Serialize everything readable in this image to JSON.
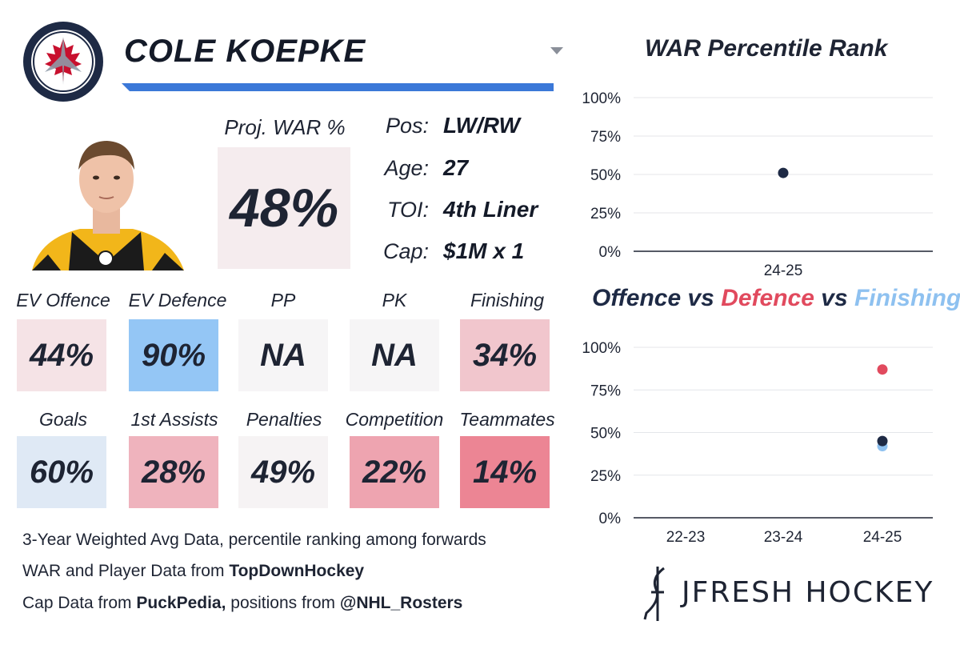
{
  "player": {
    "name": "COLE KOEPKE",
    "team_logo_icon": "winnipeg-jets-logo-icon",
    "proj_war_label": "Proj. WAR %",
    "proj_war_value": "48%"
  },
  "info": [
    {
      "label": "Pos:",
      "value": "LW/RW"
    },
    {
      "label": "Age:",
      "value": "27"
    },
    {
      "label": "TOI:",
      "value": "4th Liner"
    },
    {
      "label": "Cap:",
      "value": "$1M x 1"
    }
  ],
  "stats_row1": [
    {
      "label": "EV Offence",
      "value": "44%",
      "color": "#f5e3e6"
    },
    {
      "label": "EV Defence",
      "value": "90%",
      "color": "#94c6f5"
    },
    {
      "label": "PP",
      "value": "NA",
      "color": "#f6f5f6"
    },
    {
      "label": "PK",
      "value": "NA",
      "color": "#f6f5f6"
    },
    {
      "label": "Finishing",
      "value": "34%",
      "color": "#f1c6cd"
    }
  ],
  "stats_row2": [
    {
      "label": "Goals",
      "value": "60%",
      "color": "#dfe9f5"
    },
    {
      "label": "1st Assists",
      "value": "28%",
      "color": "#efb3bd"
    },
    {
      "label": "Penalties",
      "value": "49%",
      "color": "#f6f3f4"
    },
    {
      "label": "Competition",
      "value": "22%",
      "color": "#eea4b0"
    },
    {
      "label": "Teammates",
      "value": "14%",
      "color": "#ec8594"
    }
  ],
  "footer": {
    "line1": "3-Year Weighted Avg Data, percentile ranking among forwards",
    "line2_prefix": "WAR and Player Data from ",
    "line2_bold": "TopDownHockey",
    "line3_prefix": "Cap Data from ",
    "line3_bold1": "PuckPedia,",
    "line3_mid": " positions from ",
    "line3_bold2": "@NHL_Rosters"
  },
  "brand": {
    "name": "JFRESH HOCKEY",
    "logo_icon": "jfresh-stick-logo-icon"
  },
  "colors": {
    "navy": "#1e2a45",
    "defence_red": "#e14a5e",
    "finishing_blue": "#8ec1f0",
    "accent_blue": "#3b78d8"
  },
  "chart_data": [
    {
      "type": "scatter",
      "title": "WAR Percentile Rank",
      "categories": [
        "24-25"
      ],
      "yticks": [
        "100%",
        "75%",
        "50%",
        "25%",
        "0%"
      ],
      "ylim": [
        0,
        100
      ],
      "series": [
        {
          "values": [
            51
          ],
          "color": "#1e2a45"
        }
      ]
    },
    {
      "type": "scatter",
      "title_parts": [
        {
          "text": "Offence",
          "color": "#1e2a45"
        },
        {
          "text": " vs ",
          "color": "#1e2a45"
        },
        {
          "text": "Defence",
          "color": "#e14a5e"
        },
        {
          "text": " vs ",
          "color": "#1e2a45"
        },
        {
          "text": "Finishing",
          "color": "#8ec1f0"
        }
      ],
      "categories": [
        "22-23",
        "23-24",
        "24-25"
      ],
      "yticks": [
        "100%",
        "75%",
        "50%",
        "25%",
        "0%"
      ],
      "ylim": [
        0,
        100
      ],
      "series": [
        {
          "values": [
            null,
            null,
            87
          ],
          "color": "#e14a5e"
        },
        {
          "values": [
            null,
            null,
            42
          ],
          "color": "#8ec1f0"
        },
        {
          "values": [
            null,
            null,
            45
          ],
          "color": "#1e2a45"
        }
      ]
    }
  ]
}
